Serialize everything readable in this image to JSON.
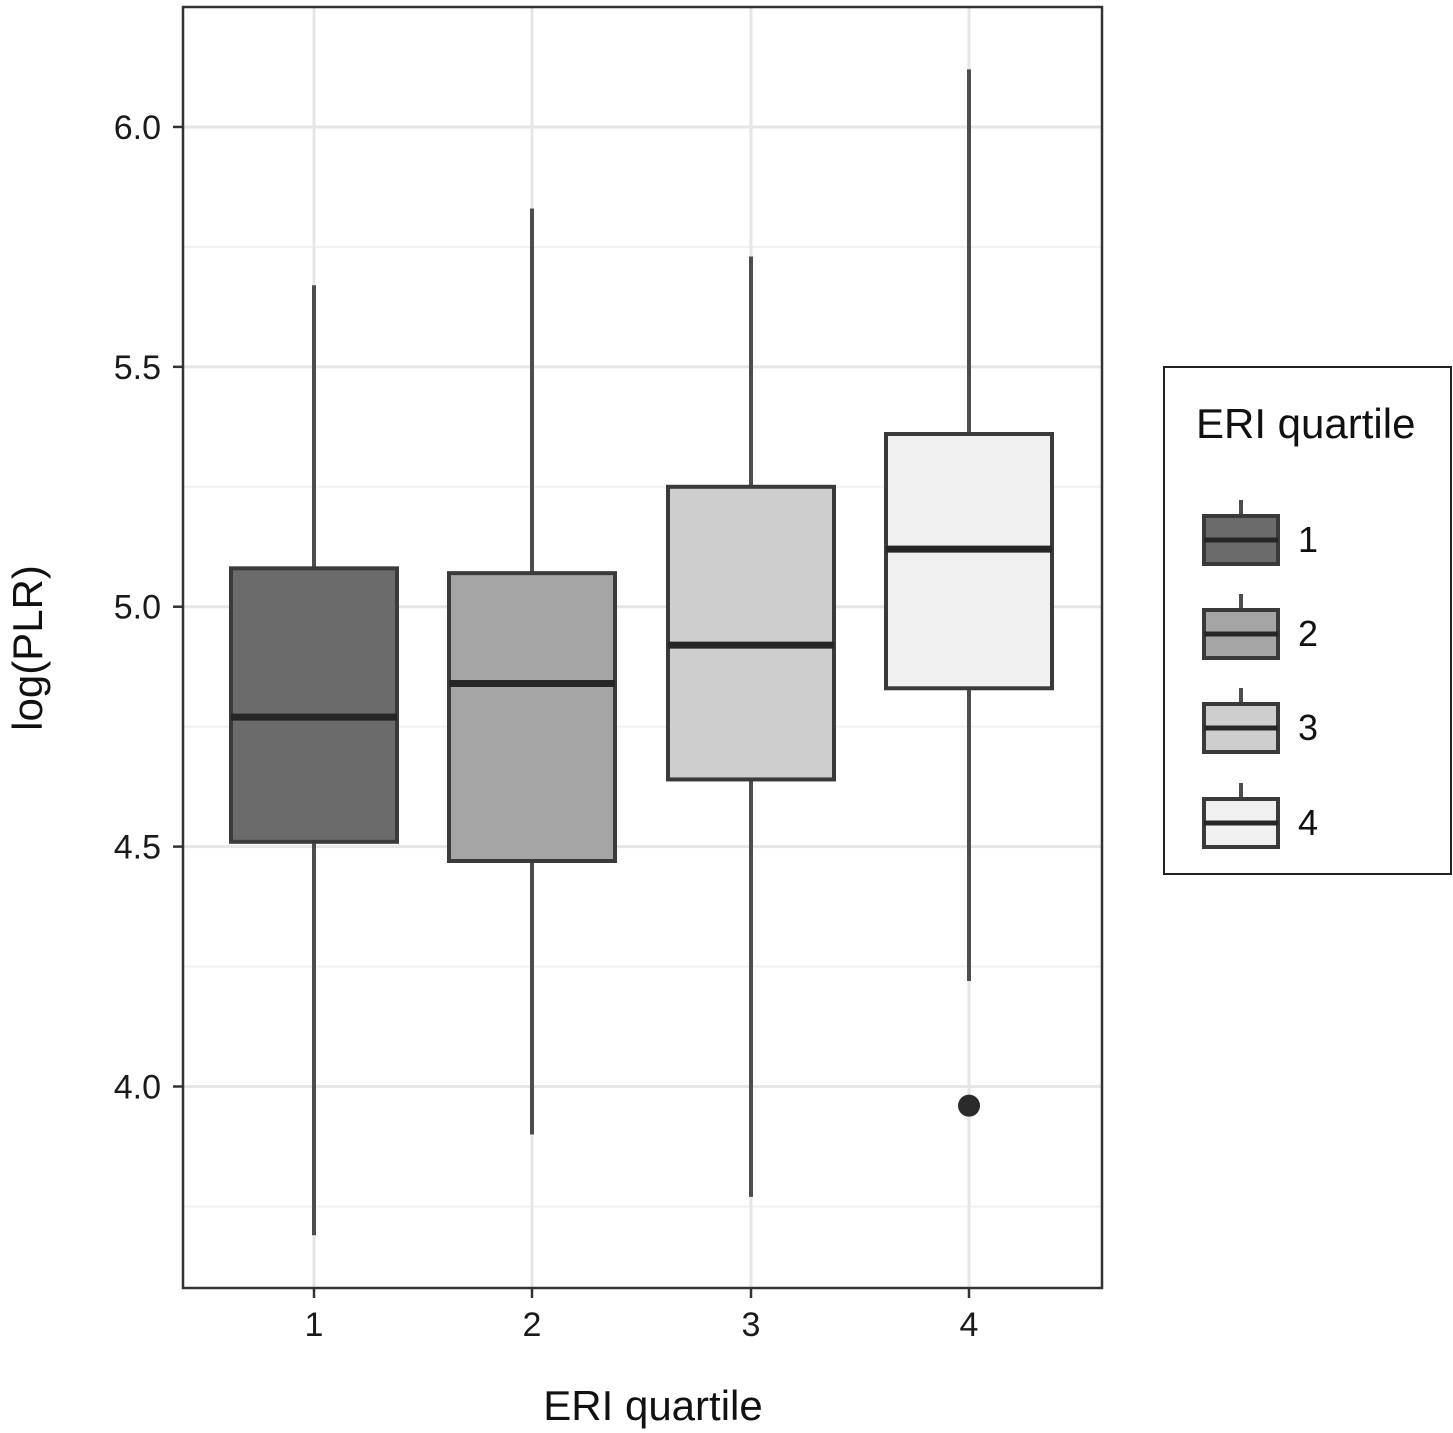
{
  "chart_data": {
    "type": "boxplot",
    "xlabel": "ERI quartile",
    "ylabel": "log(PLR)",
    "categories": [
      "1",
      "2",
      "3",
      "4"
    ],
    "ylim": [
      3.58,
      6.25
    ],
    "yticks": [
      {
        "value": 4.0,
        "label": "4.0"
      },
      {
        "value": 4.5,
        "label": "4.5"
      },
      {
        "value": 5.0,
        "label": "5.0"
      },
      {
        "value": 5.5,
        "label": "5.5"
      },
      {
        "value": 6.0,
        "label": "6.0"
      }
    ],
    "grid": true,
    "legend": {
      "title": "ERI quartile",
      "placement": "right",
      "entries": [
        "1",
        "2",
        "3",
        "4"
      ]
    },
    "boxes": [
      {
        "category": "1",
        "whisker_low": 3.69,
        "q1": 4.51,
        "median": 4.77,
        "q3": 5.08,
        "whisker_high": 5.67,
        "outliers": [],
        "fill": "#6b6b6b"
      },
      {
        "category": "2",
        "whisker_low": 3.9,
        "q1": 4.47,
        "median": 4.84,
        "q3": 5.07,
        "whisker_high": 5.83,
        "outliers": [],
        "fill": "#a5a5a5"
      },
      {
        "category": "3",
        "whisker_low": 3.77,
        "q1": 4.64,
        "median": 4.92,
        "q3": 5.25,
        "whisker_high": 5.73,
        "outliers": [],
        "fill": "#cecece"
      },
      {
        "category": "4",
        "whisker_low": 4.22,
        "q1": 4.83,
        "median": 5.12,
        "q3": 5.36,
        "whisker_high": 6.12,
        "outliers": [
          3.96
        ],
        "fill": "#f0f0f0"
      }
    ]
  }
}
